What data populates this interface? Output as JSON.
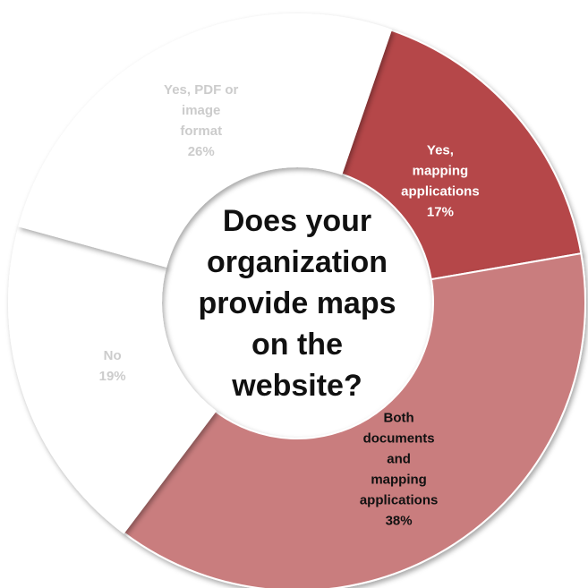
{
  "chart_data": {
    "type": "pie",
    "title": "Does your organization provide maps on the website?",
    "title_lines": [
      "Does your",
      "organization",
      "provide maps",
      "on the",
      "website?"
    ],
    "slices": [
      {
        "category": "Yes, mapping applications",
        "label_lines": [
          "Yes,",
          "mapping",
          "applications"
        ],
        "value_label": "17%",
        "value": 17,
        "color": "#b5474a",
        "text_color": "#ffffff"
      },
      {
        "category": "Both documents and mapping applications",
        "label_lines": [
          "Both",
          "documents",
          "and",
          "mapping",
          "applications"
        ],
        "value_label": "38%",
        "value": 38,
        "color": "#c97d7e",
        "text_color": "#111111"
      },
      {
        "category": "No",
        "label_lines": [
          "No"
        ],
        "value_label": "19%",
        "value": 19,
        "color": "#ffffff",
        "text_color": "#cccccc"
      },
      {
        "category": "Yes, PDF or image format",
        "label_lines": [
          "Yes, PDF or",
          "image",
          "format"
        ],
        "value_label": "26%",
        "value": 26,
        "color": "#ffffff",
        "text_color": "#cccccc"
      }
    ],
    "legend": "none",
    "donut": true
  }
}
